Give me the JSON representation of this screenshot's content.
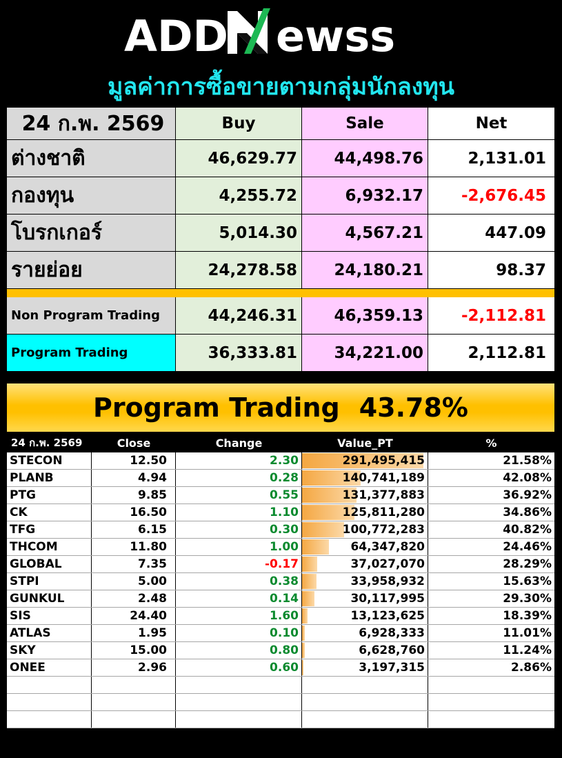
{
  "brand": {
    "text_add": "ADD",
    "text_n": "N",
    "text_ewss": "ewss"
  },
  "subtitle": "มูลค่าการซื้อขายตามกลุ่มนักลงทุน",
  "summary": {
    "date": "24 ก.พ. 2569",
    "headers": {
      "buy": "Buy",
      "sale": "Sale",
      "net": "Net"
    },
    "investors": [
      {
        "name": "ต่างชาติ",
        "buy": "46,629.77",
        "sale": "44,498.76",
        "net": "2,131.01",
        "net_negative": false
      },
      {
        "name": "กองทุน",
        "buy": "4,255.72",
        "sale": "6,932.17",
        "net": "-2,676.45",
        "net_negative": true
      },
      {
        "name": "โบรกเกอร์",
        "buy": "5,014.30",
        "sale": "4,567.21",
        "net": "447.09",
        "net_negative": false
      },
      {
        "name": "รายย่อย",
        "buy": "24,278.58",
        "sale": "24,180.21",
        "net": "98.37",
        "net_negative": false
      }
    ],
    "program_rows": [
      {
        "name": "Non Program Trading",
        "buy": "44,246.31",
        "sale": "46,359.13",
        "net": "-2,112.81",
        "net_negative": true
      },
      {
        "name": "Program Trading",
        "buy": "36,333.81",
        "sale": "34,221.00",
        "net": "2,112.81",
        "net_negative": false
      }
    ]
  },
  "banner": {
    "label": "Program Trading",
    "percent": "43.78%"
  },
  "stocks": {
    "date": "24 ก.พ. 2569",
    "headers": {
      "close": "Close",
      "change": "Change",
      "value": "Value_PT",
      "pct": "%"
    },
    "bar_max": 291495415,
    "rows": [
      {
        "symbol": "STECON",
        "close": "12.50",
        "change": "2.30",
        "value": "291,495,415",
        "value_num": 291495415,
        "pct": "21.58%"
      },
      {
        "symbol": "PLANB",
        "close": "4.94",
        "change": "0.28",
        "value": "140,741,189",
        "value_num": 140741189,
        "pct": "42.08%"
      },
      {
        "symbol": "PTG",
        "close": "9.85",
        "change": "0.55",
        "value": "131,377,883",
        "value_num": 131377883,
        "pct": "36.92%"
      },
      {
        "symbol": "CK",
        "close": "16.50",
        "change": "1.10",
        "value": "125,811,280",
        "value_num": 125811280,
        "pct": "34.86%"
      },
      {
        "symbol": "TFG",
        "close": "6.15",
        "change": "0.30",
        "value": "100,772,283",
        "value_num": 100772283,
        "pct": "40.82%"
      },
      {
        "symbol": "THCOM",
        "close": "11.80",
        "change": "1.00",
        "value": "64,347,820",
        "value_num": 64347820,
        "pct": "24.46%"
      },
      {
        "symbol": "GLOBAL",
        "close": "7.35",
        "change": "-0.17",
        "value": "37,027,070",
        "value_num": 37027070,
        "pct": "28.29%"
      },
      {
        "symbol": "STPI",
        "close": "5.00",
        "change": "0.38",
        "value": "33,958,932",
        "value_num": 33958932,
        "pct": "15.63%"
      },
      {
        "symbol": "GUNKUL",
        "close": "2.48",
        "change": "0.14",
        "value": "30,117,995",
        "value_num": 30117995,
        "pct": "29.30%"
      },
      {
        "symbol": "SIS",
        "close": "24.40",
        "change": "1.60",
        "value": "13,123,625",
        "value_num": 13123625,
        "pct": "18.39%"
      },
      {
        "symbol": "ATLAS",
        "close": "1.95",
        "change": "0.10",
        "value": "6,928,333",
        "value_num": 6928333,
        "pct": "11.01%"
      },
      {
        "symbol": "SKY",
        "close": "15.00",
        "change": "0.80",
        "value": "6,628,760",
        "value_num": 6628760,
        "pct": "11.24%"
      },
      {
        "symbol": "ONEE",
        "close": "2.96",
        "change": "0.60",
        "value": "3,197,315",
        "value_num": 3197315,
        "pct": "2.86%"
      }
    ],
    "empty_rows": 3
  },
  "colors": {
    "buy": "#00b050",
    "sale": "#ff0000",
    "title": "#22e6ef",
    "gold": "#ffc000",
    "positive": "#0a8a2e",
    "negative": "#ff0000"
  }
}
